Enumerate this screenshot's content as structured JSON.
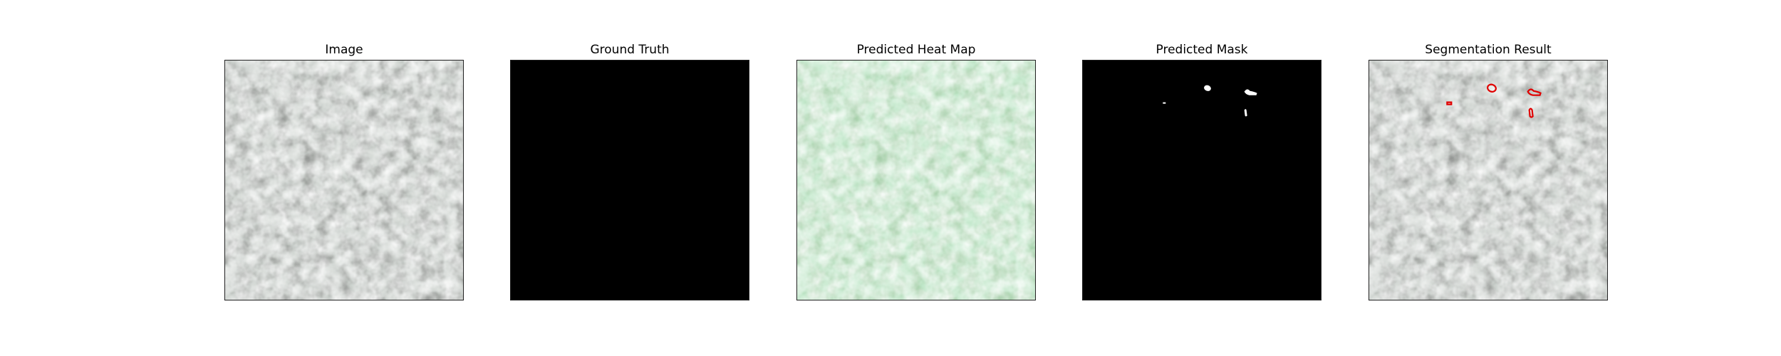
{
  "figure": {
    "panels": [
      {
        "title": "Image"
      },
      {
        "title": "Ground Truth"
      },
      {
        "title": "Predicted Heat Map"
      },
      {
        "title": "Predicted Mask"
      },
      {
        "title": "Segmentation Result"
      }
    ]
  },
  "colors": {
    "texture_base": "#8c948c",
    "texture_dark": "#2f322f",
    "heat_base": "#7cc587",
    "heat_dark": "#3f7d45",
    "mask_background": "#000000",
    "mask_foreground": "#ffffff",
    "contour": "#e00000"
  }
}
